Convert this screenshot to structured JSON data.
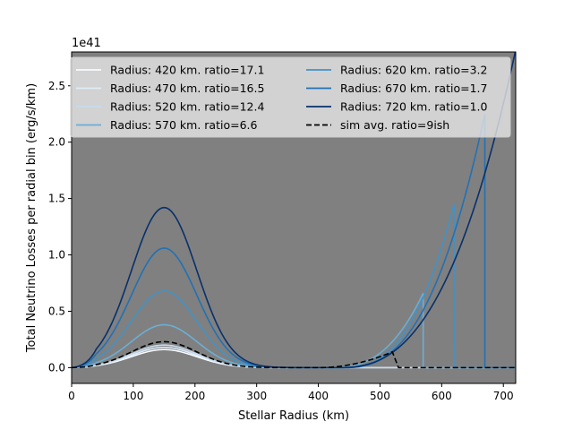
{
  "chart_data": {
    "type": "line",
    "title": "",
    "xlabel": "Stellar Radius (km)",
    "ylabel": "Total Neutrino Losses per radial bin (erg/s/km)",
    "y_offset_label": "1e41",
    "xlim": [
      0,
      720
    ],
    "ylim": [
      -0.14,
      2.8
    ],
    "xticks": [
      0,
      100,
      200,
      300,
      400,
      500,
      600,
      700
    ],
    "yticks": [
      0.0,
      0.5,
      1.0,
      1.5,
      2.0,
      2.5
    ],
    "xtick_labels": [
      "0",
      "100",
      "200",
      "300",
      "400",
      "500",
      "600",
      "700"
    ],
    "ytick_labels": [
      "0.0",
      "0.5",
      "1.0",
      "1.5",
      "2.0",
      "2.5"
    ],
    "plot_background": "#808080",
    "grid": false,
    "legend_placement": "upper-center",
    "legend_columns": 2,
    "series": [
      {
        "name": "Radius: 420 km. ratio=17.1",
        "color": "#f7fbff",
        "dash": false,
        "hump_peak": 0.16,
        "cutoff": 420,
        "rise_start": 0,
        "outer_peak": 0
      },
      {
        "name": "Radius: 470 km. ratio=16.5",
        "color": "#deebf7",
        "dash": false,
        "hump_peak": 0.18,
        "cutoff": 470,
        "rise_start": 0,
        "outer_peak": 0
      },
      {
        "name": "Radius: 520 km. ratio=12.4",
        "color": "#c6dbef",
        "dash": false,
        "hump_peak": 0.2,
        "cutoff": 520,
        "rise_start": 0,
        "outer_peak": 0
      },
      {
        "name": "Radius: 570 km. ratio=6.6",
        "color": "#6baed6",
        "dash": false,
        "hump_peak": 0.38,
        "cutoff": 570,
        "rise_start": 420,
        "outer_peak": 0.66
      },
      {
        "name": "Radius: 620 km. ratio=3.2",
        "color": "#4292c6",
        "dash": false,
        "hump_peak": 0.68,
        "cutoff": 620,
        "rise_start": 440,
        "outer_peak": 1.45
      },
      {
        "name": "Radius: 670 km. ratio=1.7",
        "color": "#2171b5",
        "dash": false,
        "hump_peak": 1.06,
        "cutoff": 670,
        "rise_start": 440,
        "outer_peak": 2.25
      },
      {
        "name": "Radius: 720 km. ratio=1.0",
        "color": "#08306b",
        "dash": false,
        "hump_peak": 1.42,
        "cutoff": 720,
        "rise_start": 430,
        "outer_peak": 2.82
      },
      {
        "name": "sim avg. ratio=9ish",
        "color": "#000000",
        "dash": true,
        "hump_peak": 0.23,
        "cutoff": 720,
        "rise_start": 400,
        "outer_peak": 0.14
      }
    ]
  }
}
